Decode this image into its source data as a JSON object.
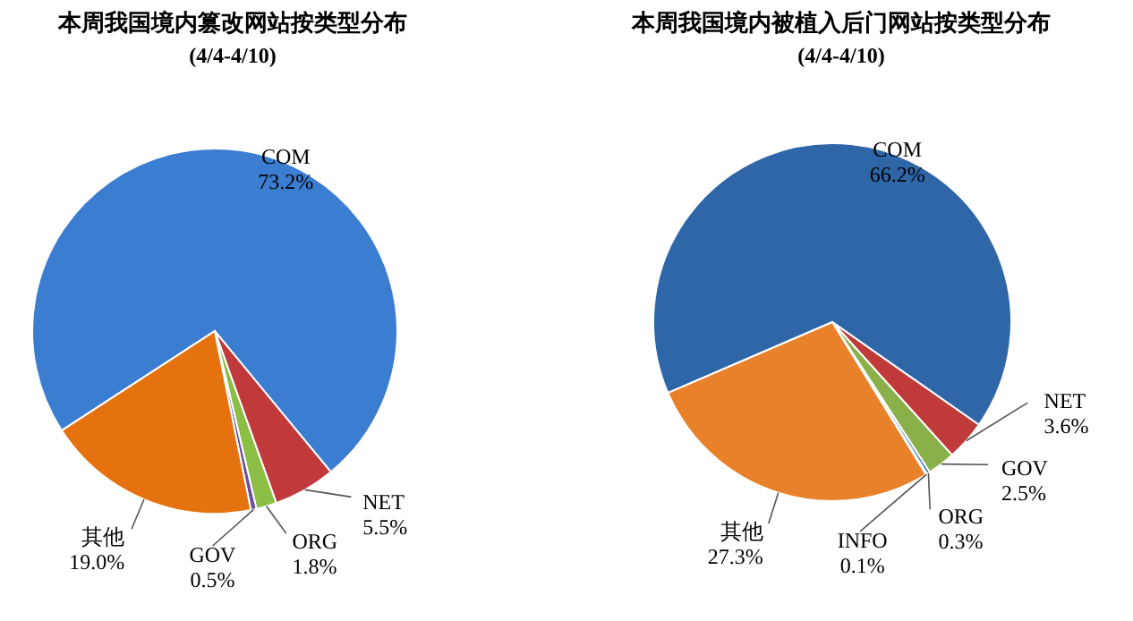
{
  "chart_data": [
    {
      "type": "pie",
      "title": "本周我国境内篡改网站按类型分布",
      "subtitle": "(4/4-4/10)",
      "categories": [
        "COM",
        "NET",
        "ORG",
        "GOV",
        "其他"
      ],
      "values": [
        73.2,
        5.5,
        1.8,
        0.5,
        19.0
      ],
      "value_labels": [
        "73.2%",
        "5.5%",
        "1.8%",
        "0.5%",
        "19.0%"
      ],
      "colors": [
        "#3b7dd0",
        "#c0393b",
        "#8cbd45",
        "#6b4fa0",
        "#e5720e"
      ]
    },
    {
      "type": "pie",
      "title": "本周我国境内被植入后门网站按类型分布",
      "subtitle": "(4/4-4/10)",
      "categories": [
        "COM",
        "NET",
        "GOV",
        "ORG",
        "INFO",
        "其他"
      ],
      "values": [
        66.2,
        3.6,
        2.5,
        0.3,
        0.1,
        27.3
      ],
      "value_labels": [
        "66.2%",
        "3.6%",
        "2.5%",
        "0.3%",
        "0.1%",
        "27.3%"
      ],
      "colors": [
        "#2f66a8",
        "#c03a3a",
        "#8ab04a",
        "#3f6fb0",
        "#f0a030",
        "#e8812a"
      ]
    }
  ]
}
